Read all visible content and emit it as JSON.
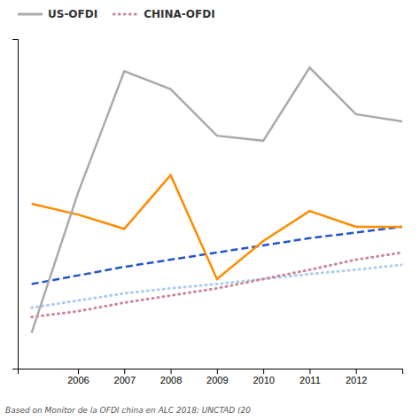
{
  "chart_data": {
    "type": "line",
    "x": [
      2005,
      2006,
      2007,
      2008,
      2009,
      2010,
      2011,
      2012,
      2013
    ],
    "series": [
      {
        "name": "US-OFDI",
        "color": "#AAAAAA",
        "line_style": "solid",
        "values": [
          20,
          215,
          385,
          360,
          295,
          288,
          390,
          325,
          315
        ]
      },
      {
        "color": "#FF8C00",
        "line_style": "solid",
        "values": [
          200,
          185,
          165,
          240,
          95,
          148,
          190,
          168,
          168
        ]
      },
      {
        "color": "#2255CC",
        "line_style": "dashed",
        "values": [
          88,
          100,
          112,
          122,
          132,
          142,
          152,
          160,
          168
        ]
      },
      {
        "name": "CHINA-OFDI",
        "color": "#CC8899",
        "line_style": "dotted",
        "values": [
          42,
          50,
          62,
          72,
          82,
          95,
          108,
          122,
          132
        ]
      },
      {
        "color": "#AACCEE",
        "line_style": "dotted",
        "values": [
          55,
          65,
          75,
          82,
          88,
          95,
          102,
          108,
          115
        ]
      }
    ],
    "xlim": [
      2004.7,
      2013.0
    ],
    "xticks": [
      2006,
      2007,
      2008,
      2009,
      2010,
      2011,
      2012
    ],
    "ylim": [
      -30,
      430
    ],
    "yticks": [],
    "grid": false,
    "tick_labels": "x",
    "legend": "top",
    "annotations": [
      "Based on Monitor de la OFDI china en ALC 2018; UNCTAD (20"
    ]
  }
}
